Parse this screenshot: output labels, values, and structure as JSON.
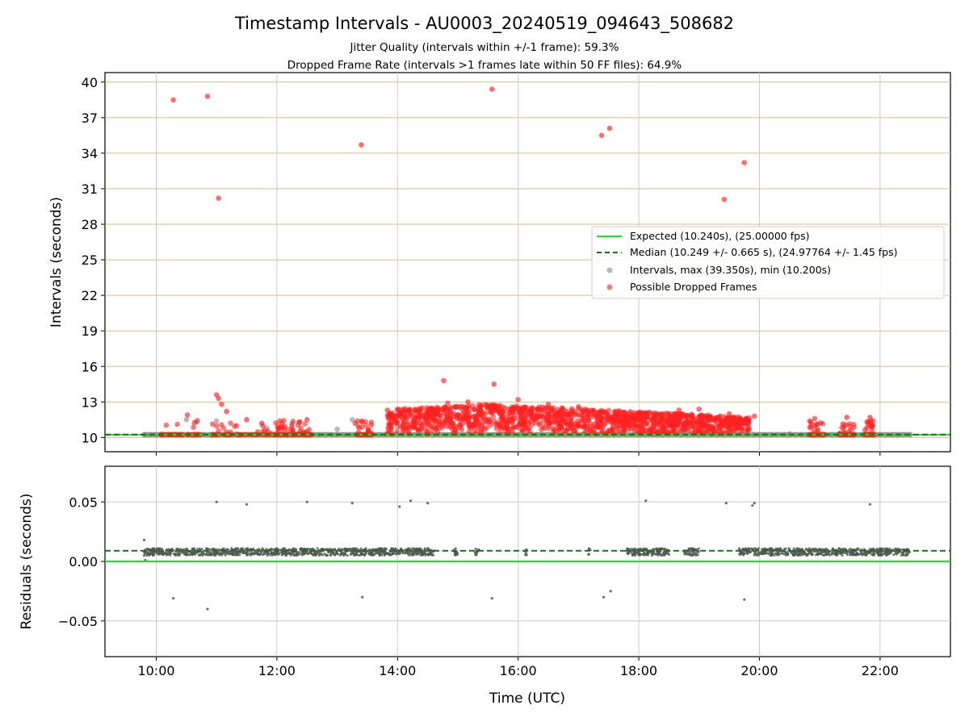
{
  "chart_data": [
    {
      "type": "scatter",
      "title": "Timestamp Intervals - AU0003_20240519_094643_508682",
      "subtitle_lines": [
        "Jitter Quality (intervals within +/-1 frame): 59.3%",
        "Dropped Frame Rate (intervals >1 frames late within 50 FF files): 64.9%"
      ],
      "xlabel": "Time (UTC)",
      "ylabel": "Intervals (seconds)",
      "xlim": [
        "09:09",
        "23:10"
      ],
      "ylim": [
        8.8,
        40.8
      ],
      "xticks": [
        "10:00",
        "12:00",
        "14:00",
        "16:00",
        "18:00",
        "20:00",
        "22:00"
      ],
      "yticks": [
        10,
        13,
        16,
        19,
        22,
        25,
        28,
        31,
        34,
        37,
        40
      ],
      "grid": true,
      "grid_color_y": "#d8c080",
      "legend_position": "center-right",
      "series": [
        {
          "name": "Expected (10.240s), (25.00000 fps)",
          "kind": "hline",
          "y": 10.24,
          "color": "#11ee11",
          "style": "solid"
        },
        {
          "name": "Median (10.249 +/- 0.665 s), (24.97764 +/- 1.45 fps)",
          "kind": "hline",
          "y": 10.249,
          "color": "#117711",
          "style": "dashed"
        },
        {
          "name": "Intervals, max (39.350s), min (10.200s)",
          "kind": "points",
          "color": "#888888",
          "points": [
            [
              "09:48",
              10.24
            ],
            [
              "10:05",
              10.24
            ],
            [
              "10:30",
              11.5
            ],
            [
              "10:40",
              11.3
            ],
            [
              "11:00",
              11.4
            ],
            [
              "11:20",
              10.3
            ],
            [
              "11:50",
              10.8
            ],
            [
              "12:15",
              11.2
            ],
            [
              "12:30",
              10.5
            ],
            [
              "13:00",
              10.7
            ],
            [
              "13:15",
              11.5
            ],
            [
              "14:00",
              10.9
            ],
            [
              "20:30",
              10.3
            ],
            [
              "20:55",
              10.8
            ],
            [
              "21:25",
              11.0
            ],
            [
              "21:45",
              10.3
            ],
            [
              "22:30",
              10.24
            ]
          ]
        },
        {
          "name": "Possible Dropped Frames",
          "kind": "points",
          "color": "#ff2222",
          "points": [
            [
              "10:17",
              38.5
            ],
            [
              "10:51",
              38.8
            ],
            [
              "11:02",
              30.2
            ],
            [
              "13:24",
              34.7
            ],
            [
              "15:34",
              39.4
            ],
            [
              "17:23",
              35.5
            ],
            [
              "17:31",
              36.1
            ],
            [
              "19:25",
              30.1
            ],
            [
              "19:45",
              33.2
            ],
            [
              "14:46",
              14.8
            ],
            [
              "15:36",
              14.5
            ],
            [
              "11:00",
              13.6
            ],
            [
              "11:02",
              13.3
            ],
            [
              "11:05",
              12.8
            ],
            [
              "10:31",
              11.9
            ],
            [
              "11:10",
              12.2
            ],
            [
              "11:30",
              11.5
            ],
            [
              "11:45",
              11.2
            ],
            [
              "12:15",
              11.0
            ],
            [
              "12:22",
              11.3
            ],
            [
              "12:30",
              11.5
            ],
            [
              "13:18",
              11.2
            ],
            [
              "13:25",
              11.3
            ],
            [
              "13:50",
              12.3
            ],
            [
              "14:50",
              12.9
            ],
            [
              "15:10",
              13.0
            ],
            [
              "16:00",
              13.2
            ],
            [
              "16:30",
              12.8
            ],
            [
              "17:00",
              12.6
            ],
            [
              "18:00",
              12.0
            ],
            [
              "18:40",
              12.3
            ],
            [
              "19:00",
              12.4
            ],
            [
              "19:30",
              12.0
            ],
            [
              "19:55",
              11.8
            ],
            [
              "20:55",
              11.6
            ],
            [
              "21:27",
              11.7
            ],
            [
              "21:50",
              11.7
            ],
            [
              "21:52",
              10.9
            ]
          ],
          "band": {
            "description_x_ranges": [
              [
                "13:50",
                "19:50"
              ]
            ],
            "y_range": [
              10.3,
              12.8
            ]
          }
        }
      ]
    },
    {
      "type": "scatter",
      "xlabel": "Time (UTC)",
      "ylabel": "Residuals (seconds)",
      "xlim": [
        "09:09",
        "23:10"
      ],
      "ylim": [
        -0.08,
        0.08
      ],
      "xticks": [
        "10:00",
        "12:00",
        "14:00",
        "16:00",
        "18:00",
        "20:00",
        "22:00"
      ],
      "ytick_labels": [
        "0.05",
        "0.00",
        "−0.05"
      ],
      "yticks": [
        0.05,
        0.0,
        -0.05
      ],
      "grid": true,
      "lines": [
        {
          "y": 0.0,
          "color": "#11ee11",
          "style": "solid"
        },
        {
          "y": 0.009,
          "color": "#117711",
          "style": "dashed"
        }
      ],
      "points_color": "#555555",
      "points": [
        [
          "09:48",
          0.018
        ],
        [
          "09:48",
          0.005
        ],
        [
          "09:49",
          0.001
        ],
        [
          "10:17",
          -0.031
        ],
        [
          "10:51",
          -0.04
        ],
        [
          "11:00",
          0.05
        ],
        [
          "11:30",
          0.048
        ],
        [
          "12:30",
          0.05
        ],
        [
          "13:15",
          0.049
        ],
        [
          "13:25",
          -0.03
        ],
        [
          "14:02",
          0.046
        ],
        [
          "14:13",
          0.051
        ],
        [
          "14:30",
          0.049
        ],
        [
          "15:34",
          -0.031
        ],
        [
          "17:25",
          -0.03
        ],
        [
          "17:32",
          -0.025
        ],
        [
          "18:07",
          0.051
        ],
        [
          "19:27",
          0.049
        ],
        [
          "19:53",
          0.047
        ],
        [
          "19:55",
          0.049
        ],
        [
          "19:45",
          -0.032
        ],
        [
          "21:50",
          0.048
        ]
      ],
      "residual_band": {
        "segments": [
          [
            "09:48",
            "14:37"
          ],
          [
            "14:56",
            "15:00"
          ],
          [
            "15:17",
            "15:21"
          ],
          [
            "16:07",
            "16:09"
          ],
          [
            "17:10",
            "17:12"
          ],
          [
            "17:48",
            "18:30"
          ],
          [
            "18:45",
            "19:00"
          ],
          [
            "19:40",
            "22:30"
          ]
        ],
        "y_range": [
          0.005,
          0.011
        ]
      }
    }
  ]
}
